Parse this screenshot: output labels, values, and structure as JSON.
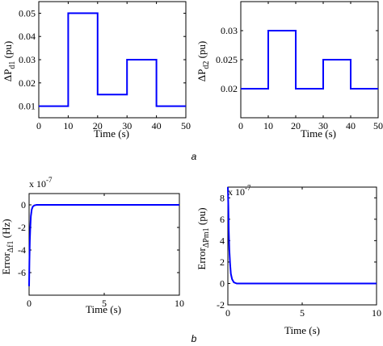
{
  "panel_labels": {
    "a": "a",
    "b": "b"
  },
  "chart_data": [
    {
      "id": "c1",
      "type": "line",
      "xlabel": "Time (s)",
      "ylabel": {
        "main": "ΔP",
        "sub": "d1",
        "unit": " (pu)"
      },
      "xlim": [
        0,
        50
      ],
      "ylim": [
        0.005,
        0.055
      ],
      "xticks": [
        0,
        10,
        20,
        30,
        40,
        50
      ],
      "yticks": [
        0.01,
        0.02,
        0.03,
        0.04,
        0.05
      ],
      "yticklabels": [
        "0.01",
        "0.02",
        "0.03",
        "0.04",
        "0.05"
      ],
      "exponent": "",
      "color": "#0000ff",
      "x": [
        0,
        10,
        10,
        20,
        20,
        30,
        30,
        40,
        40,
        50
      ],
      "y": [
        0.01,
        0.01,
        0.05,
        0.05,
        0.015,
        0.015,
        0.03,
        0.03,
        0.01,
        0.01
      ]
    },
    {
      "id": "c2",
      "type": "line",
      "xlabel": "Time (s)",
      "ylabel": {
        "main": "ΔP",
        "sub": "d2",
        "unit": " (pu)"
      },
      "xlim": [
        0,
        50
      ],
      "ylim": [
        0.015,
        0.035
      ],
      "xticks": [
        0,
        10,
        20,
        30,
        40,
        50
      ],
      "yticks": [
        0.02,
        0.025,
        0.03
      ],
      "yticklabels": [
        "0.02",
        "0.025",
        "0.03"
      ],
      "exponent": "",
      "color": "#0000ff",
      "x": [
        0,
        10,
        10,
        20,
        20,
        30,
        30,
        40,
        40,
        50
      ],
      "y": [
        0.02,
        0.02,
        0.03,
        0.03,
        0.02,
        0.02,
        0.025,
        0.025,
        0.02,
        0.02
      ]
    },
    {
      "id": "c3",
      "type": "line",
      "xlabel": "Time (s)",
      "ylabel": {
        "main": "Error",
        "sub": "Δf1",
        "unit": " (Hz)"
      },
      "xlim": [
        0,
        10
      ],
      "ylim": [
        -8,
        1
      ],
      "xticks": [
        0,
        5,
        10
      ],
      "yticks": [
        0,
        -2,
        -4,
        -6
      ],
      "yticklabels": [
        "0",
        "-2",
        "-4",
        "-6"
      ],
      "exponent": "x 10",
      "exponent_power": "-7",
      "color": "#0000ff",
      "x": [
        0,
        0.02,
        0.05,
        0.08,
        0.12,
        0.18,
        0.25,
        0.35,
        0.5,
        0.8,
        10
      ],
      "y": [
        -7.2,
        -5.0,
        -3.2,
        -2.0,
        -1.0,
        -0.4,
        -0.15,
        -0.05,
        0,
        0,
        0
      ]
    },
    {
      "id": "c4",
      "type": "line",
      "xlabel": "Time (s)",
      "ylabel": {
        "main": "Error",
        "sub": "ΔPm1",
        "unit": " (pu)"
      },
      "xlim": [
        0,
        10
      ],
      "ylim": [
        -2,
        9
      ],
      "xticks": [
        0,
        5,
        10
      ],
      "yticks": [
        8,
        6,
        4,
        2,
        0,
        -2
      ],
      "yticklabels": [
        "8",
        "6",
        "4",
        "2",
        "0",
        "-2"
      ],
      "exponent": "x 10",
      "exponent_power": "-7",
      "color": "#0000ff",
      "x": [
        0,
        0.03,
        0.06,
        0.1,
        0.15,
        0.2,
        0.28,
        0.4,
        0.6,
        10
      ],
      "y": [
        9,
        7.2,
        5.0,
        3.2,
        1.8,
        0.9,
        0.4,
        0.1,
        0,
        0
      ]
    }
  ]
}
